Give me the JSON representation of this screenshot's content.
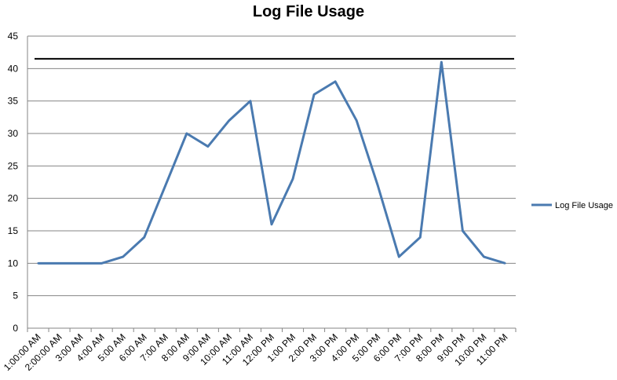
{
  "chart_data": {
    "type": "line",
    "title": "Log File Usage",
    "xlabel": "",
    "ylabel": "",
    "ylim": [
      0,
      45
    ],
    "ytick_step": 5,
    "grid": "horizontal",
    "legend_placement": "right",
    "categories": [
      "1:00:00 AM",
      "2:00:00 AM",
      "3:00 AM",
      "4:00 AM",
      "5:00 AM",
      "6:00 AM",
      "7:00 AM",
      "8:00 AM",
      "9:00 AM",
      "10:00 AM",
      "11:00 AM",
      "12:00 PM",
      "1:00 PM",
      "2:00 PM",
      "3:00 PM",
      "4:00 PM",
      "5:00 PM",
      "6:00 PM",
      "7:00 PM",
      "8:00 PM",
      "9:00 PM",
      "10:00 PM",
      "11:00 PM"
    ],
    "series": [
      {
        "name": "Log File Usage",
        "color": "#4a7ab0",
        "values": [
          10,
          10,
          10,
          10,
          11,
          14,
          22,
          30,
          28,
          32,
          35,
          16,
          23,
          36,
          38,
          32,
          22,
          11,
          14,
          41,
          15,
          11,
          10
        ]
      }
    ],
    "reference_line": {
      "value": 41.5,
      "color": "#000000"
    }
  }
}
